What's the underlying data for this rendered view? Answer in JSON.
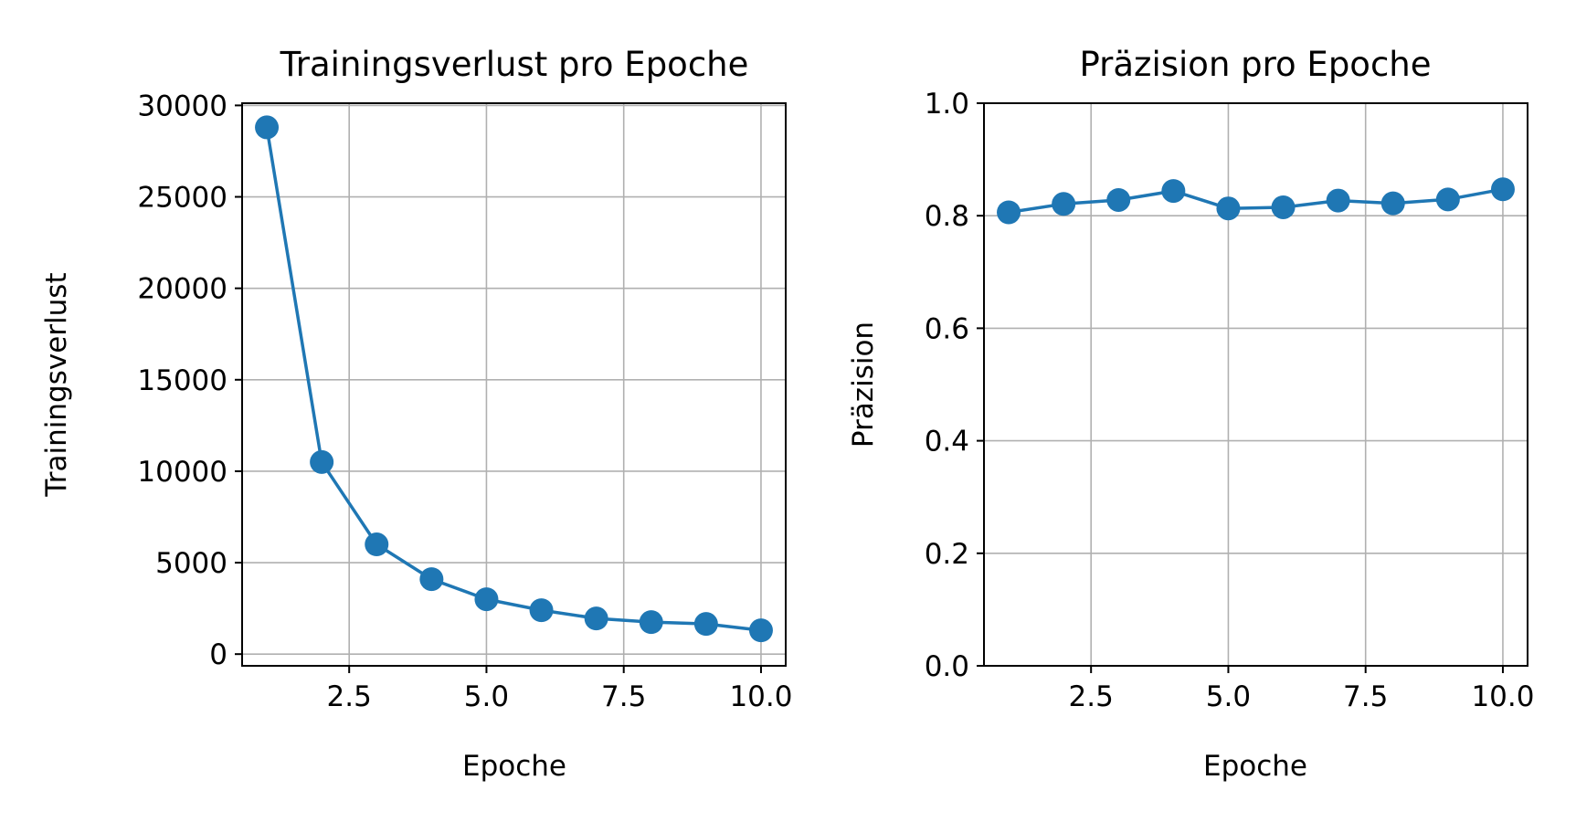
{
  "chart_data": [
    {
      "type": "line",
      "title": "Trainingsverlust pro Epoche",
      "xlabel": "Epoche",
      "ylabel": "Trainingsverlust",
      "x": [
        1,
        2,
        3,
        4,
        5,
        6,
        7,
        8,
        9,
        10
      ],
      "series": [
        {
          "values": [
            28800,
            10500,
            6000,
            4100,
            3000,
            2400,
            1950,
            1750,
            1650,
            1300
          ]
        }
      ],
      "xlim": [
        0.55,
        10.45
      ],
      "ylim": [
        -640,
        30120
      ],
      "xticks": [
        2.5,
        5.0,
        7.5,
        10.0
      ],
      "xtick_labels": [
        "2.5",
        "5.0",
        "7.5",
        "10.0"
      ],
      "yticks": [
        0,
        5000,
        10000,
        15000,
        20000,
        25000,
        30000
      ],
      "ytick_labels": [
        "0",
        "5000",
        "10000",
        "15000",
        "20000",
        "25000",
        "30000"
      ],
      "grid": true,
      "color": "#1f77b4",
      "marker": "circle"
    },
    {
      "type": "line",
      "title": "Präzision pro Epoche",
      "xlabel": "Epoche",
      "ylabel": "Präzision",
      "x": [
        1,
        2,
        3,
        4,
        5,
        6,
        7,
        8,
        9,
        10
      ],
      "series": [
        {
          "values": [
            0.806,
            0.821,
            0.828,
            0.844,
            0.813,
            0.815,
            0.827,
            0.822,
            0.829,
            0.847
          ]
        }
      ],
      "xlim": [
        0.55,
        10.45
      ],
      "ylim": [
        0.0,
        1.0
      ],
      "xticks": [
        2.5,
        5.0,
        7.5,
        10.0
      ],
      "xtick_labels": [
        "2.5",
        "5.0",
        "7.5",
        "10.0"
      ],
      "yticks": [
        0.0,
        0.2,
        0.4,
        0.6,
        0.8,
        1.0
      ],
      "ytick_labels": [
        "0.0",
        "0.2",
        "0.4",
        "0.6",
        "0.8",
        "1.0"
      ],
      "grid": true,
      "color": "#1f77b4",
      "marker": "circle"
    }
  ]
}
